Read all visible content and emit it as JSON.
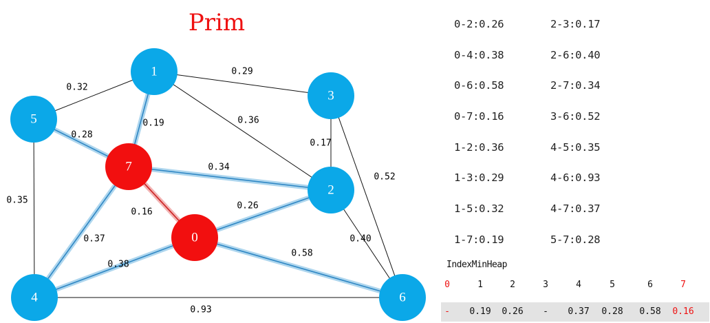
{
  "title": "Prim",
  "colors": {
    "title": "#ee1111",
    "node_blue": "#0ba8e8",
    "node_red": "#f20f0f",
    "edge_plain": "#111111",
    "edge_highlight": "#2f87c4",
    "edge_glow": "#aed6ee",
    "edge_red": "#cc2222",
    "edge_red_glow": "#f2b4b4",
    "heap_highlight": "#ee1111",
    "heap_row_bg": "#e3e3e3"
  },
  "graph": {
    "nodes": [
      {
        "id": "0",
        "label": "0",
        "color": "red"
      },
      {
        "id": "1",
        "label": "1",
        "color": "blue"
      },
      {
        "id": "2",
        "label": "2",
        "color": "blue"
      },
      {
        "id": "3",
        "label": "3",
        "color": "blue"
      },
      {
        "id": "4",
        "label": "4",
        "color": "blue"
      },
      {
        "id": "5",
        "label": "5",
        "color": "blue"
      },
      {
        "id": "6",
        "label": "6",
        "color": "blue"
      },
      {
        "id": "7",
        "label": "7",
        "color": "red"
      }
    ],
    "edges": [
      {
        "from": "1",
        "to": "5",
        "weight": "0.32",
        "state": "plain"
      },
      {
        "from": "1",
        "to": "3",
        "weight": "0.29",
        "state": "plain"
      },
      {
        "from": "1",
        "to": "2",
        "weight": "0.36",
        "state": "plain"
      },
      {
        "from": "3",
        "to": "2",
        "weight": "0.17",
        "state": "plain"
      },
      {
        "from": "3",
        "to": "6",
        "weight": "0.52",
        "state": "plain"
      },
      {
        "from": "2",
        "to": "6",
        "weight": "0.40",
        "state": "plain"
      },
      {
        "from": "5",
        "to": "4",
        "weight": "0.35",
        "state": "plain"
      },
      {
        "from": "4",
        "to": "6",
        "weight": "0.93",
        "state": "plain"
      },
      {
        "from": "1",
        "to": "7",
        "weight": "0.19",
        "state": "candidate"
      },
      {
        "from": "5",
        "to": "7",
        "weight": "0.28",
        "state": "candidate"
      },
      {
        "from": "7",
        "to": "2",
        "weight": "0.34",
        "state": "candidate"
      },
      {
        "from": "0",
        "to": "2",
        "weight": "0.26",
        "state": "candidate"
      },
      {
        "from": "7",
        "to": "4",
        "weight": "0.37",
        "state": "candidate"
      },
      {
        "from": "0",
        "to": "4",
        "weight": "0.38",
        "state": "candidate"
      },
      {
        "from": "0",
        "to": "6",
        "weight": "0.58",
        "state": "candidate"
      },
      {
        "from": "7",
        "to": "0",
        "weight": "0.16",
        "state": "mst"
      }
    ]
  },
  "edge_list": {
    "left": [
      "0-2:0.26",
      "0-4:0.38",
      "0-6:0.58",
      "0-7:0.16",
      "1-2:0.36",
      "1-3:0.29",
      "1-5:0.32",
      "1-7:0.19"
    ],
    "right": [
      "2-3:0.17",
      "2-6:0.40",
      "2-7:0.34",
      "3-6:0.52",
      "4-5:0.35",
      "4-6:0.93",
      "4-7:0.37",
      "5-7:0.28"
    ]
  },
  "heap": {
    "title": "IndexMinHeap",
    "indices": [
      "0",
      "1",
      "2",
      "3",
      "4",
      "5",
      "6",
      "7"
    ],
    "values": [
      "-",
      "0.19",
      "0.26",
      "-",
      "0.37",
      "0.28",
      "0.58",
      "0.16"
    ],
    "highlighted": [
      0,
      7
    ]
  }
}
